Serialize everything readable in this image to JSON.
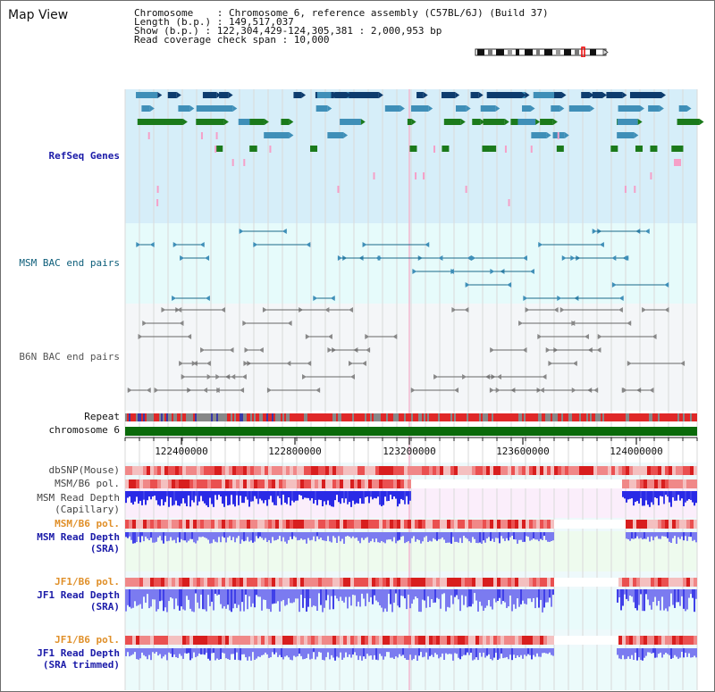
{
  "title": "Map View",
  "info": {
    "chromosome": "Chromosome    : Chromosome 6, reference assembly (C57BL/6J) (Build 37)",
    "length": "Length (b.p.) : 149,517,037",
    "show": "Show (b.p.) : 122,304,429-124,305,381 : 2,000,953 bp",
    "span": "Read coverage check span : 10,000"
  },
  "colors": {
    "refseq_bg": "#d6eef9",
    "msm_bac_bg": "#e6fbfb",
    "b6n_bac_bg": "#f4f6f8",
    "gene_dark": "#0d3c6e",
    "gene_mid": "#3f8fb8",
    "gene_green": "#1b7a1b",
    "pink": "#f5a0c8",
    "chromosome_bar": "#0a6a0a",
    "depth_blue": "#2a2ae6",
    "depth_light": "#7b7bf0",
    "pol_red": "#e8383a"
  },
  "tracks": {
    "refseq": "RefSeq Genes",
    "msm_bac": "MSM BAC end pairs",
    "b6n_bac": "B6N BAC end pairs",
    "repeat": "Repeat",
    "chromosome": "chromosome 6",
    "dbsnp": "dbSNP(Mouse)",
    "msm_b6_pol_1": "MSM/B6 pol.",
    "msm_depth_cap_1": "MSM Read Depth",
    "msm_depth_cap_2": "(Capillary)",
    "msm_b6_pol_2": "MSM/B6 pol.",
    "msm_depth_sra_1": "MSM Read Depth",
    "msm_depth_sra_2": "(SRA)",
    "jf1_b6_pol_1": "JF1/B6 pol.",
    "jf1_depth_sra_1": "JF1 Read Depth",
    "jf1_depth_sra_2": "(SRA)",
    "jf1_b6_pol_2": "JF1/B6 pol.",
    "jf1_depth_trim_1": "JF1 Read Depth",
    "jf1_depth_trim_2": "(SRA trimmed)"
  },
  "axis": {
    "ticks": [
      "122400000",
      "122800000",
      "123200000",
      "123600000",
      "124000000"
    ]
  }
}
